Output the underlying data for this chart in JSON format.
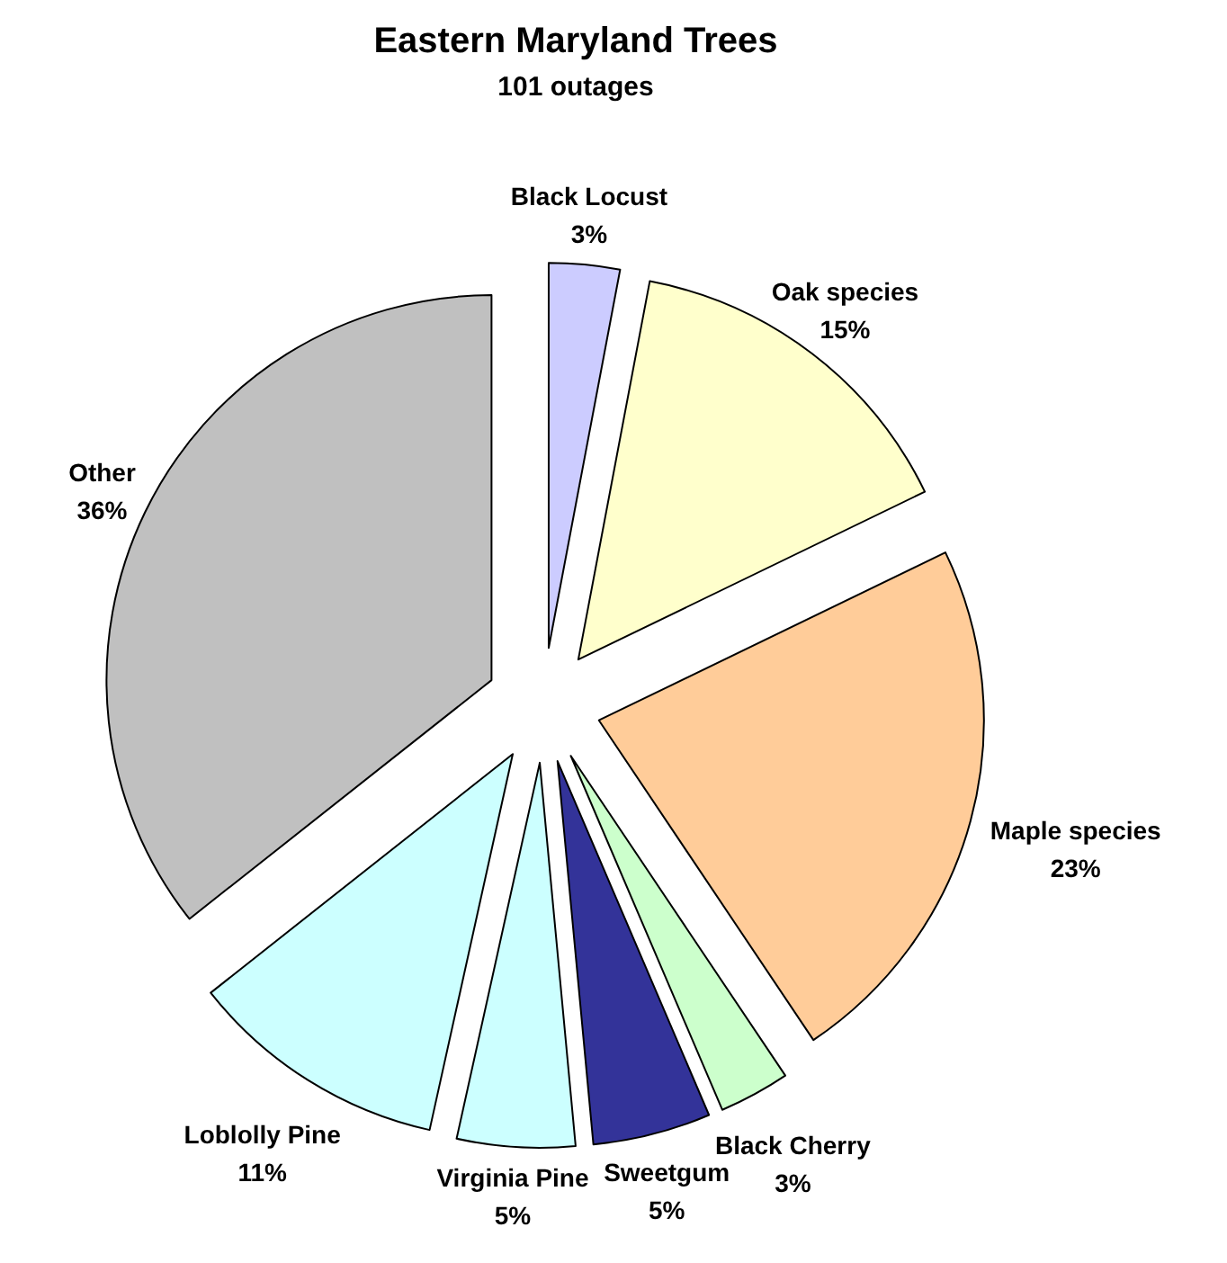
{
  "chart_data": {
    "type": "pie",
    "title": "Eastern Maryland Trees",
    "subtitle": "101 outages",
    "categories": [
      "Black Locust",
      "Oak species",
      "Maple species",
      "Black Cherry",
      "Sweetgum",
      "Virginia Pine",
      "Loblolly Pine",
      "Other"
    ],
    "values": [
      3,
      15,
      23,
      3,
      5,
      5,
      11,
      36
    ],
    "colors": [
      "#ccccff",
      "#ffffcc",
      "#ffcc99",
      "#ccffcc",
      "#333399",
      "#ccffff",
      "#ccffff",
      "#c0c0c0"
    ],
    "value_labels": [
      "3%",
      "15%",
      "23%",
      "3%",
      "5%",
      "5%",
      "11%",
      "36%"
    ]
  }
}
